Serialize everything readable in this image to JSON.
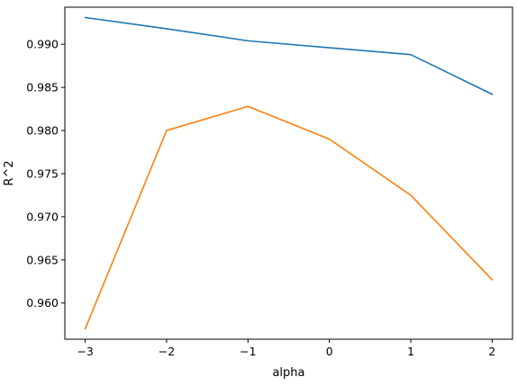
{
  "chart_data": {
    "type": "line",
    "xlabel": "alpha",
    "ylabel": "R^2",
    "xlim": [
      -3.25,
      2.25
    ],
    "ylim": [
      0.9558,
      0.9943
    ],
    "x_ticks": [
      -3,
      -2,
      -1,
      0,
      1,
      2
    ],
    "x_tick_labels": [
      "−3",
      "−2",
      "−1",
      "0",
      "1",
      "2"
    ],
    "y_ticks": [
      0.96,
      0.965,
      0.97,
      0.975,
      0.98,
      0.985,
      0.99
    ],
    "y_tick_labels": [
      "0.960",
      "0.965",
      "0.970",
      "0.975",
      "0.980",
      "0.985",
      "0.990"
    ],
    "grid": false,
    "x": [
      -3,
      -2,
      -1,
      0,
      1,
      2
    ],
    "series": [
      {
        "color": "#1f77b4",
        "values": [
          0.9931,
          0.9918,
          0.9904,
          0.9896,
          0.9888,
          0.9842
        ]
      },
      {
        "color": "#ff7f0e",
        "values": [
          0.957,
          0.98,
          0.9828,
          0.979,
          0.9725,
          0.9627
        ]
      }
    ]
  }
}
